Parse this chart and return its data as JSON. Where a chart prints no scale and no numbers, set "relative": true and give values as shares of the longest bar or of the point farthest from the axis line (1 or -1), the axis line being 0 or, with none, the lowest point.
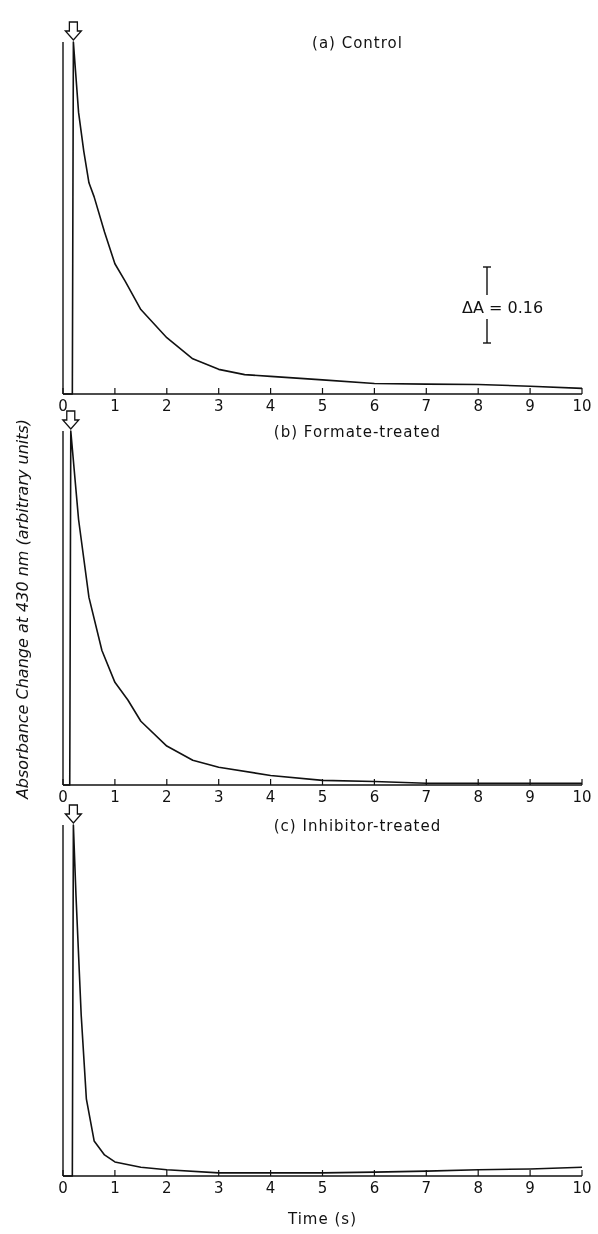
{
  "chart_data": [
    {
      "type": "line",
      "title": "(a) Control",
      "relative": true,
      "xlim": [
        0,
        10
      ],
      "xticks": [
        0,
        1,
        2,
        3,
        4,
        5,
        6,
        7,
        8,
        9,
        10
      ],
      "color": "#111111",
      "annotations": [
        "ΔA = 0.16"
      ],
      "x": [
        0,
        0.18,
        0.2,
        0.3,
        0.4,
        0.5,
        0.6,
        0.8,
        1,
        1.2,
        1.5,
        2,
        2.5,
        3,
        3.5,
        4,
        5,
        6,
        7,
        8,
        9,
        10
      ],
      "values": [
        0,
        0,
        1,
        0.8,
        0.69,
        0.6,
        0.56,
        0.46,
        0.37,
        0.32,
        0.24,
        0.16,
        0.1,
        0.07,
        0.055,
        0.05,
        0.04,
        0.03,
        0.028,
        0.027,
        0.022,
        0.016
      ]
    },
    {
      "type": "line",
      "title": "(b) Formate-treated",
      "ylabel": "Absorbance Change at 430 nm (arbitrary units)",
      "relative": true,
      "xlim": [
        0,
        10
      ],
      "xticks": [
        0,
        1,
        2,
        3,
        4,
        5,
        6,
        7,
        8,
        9,
        10
      ],
      "color": "#111111",
      "x": [
        0,
        0.13,
        0.15,
        0.3,
        0.5,
        0.75,
        1,
        1.25,
        1.5,
        2,
        2.5,
        3,
        4,
        5,
        6,
        7,
        8,
        9,
        10
      ],
      "values": [
        0,
        0,
        1,
        0.75,
        0.53,
        0.38,
        0.29,
        0.24,
        0.18,
        0.11,
        0.07,
        0.05,
        0.027,
        0.013,
        0.01,
        0.005,
        0.005,
        0.005,
        0.005
      ]
    },
    {
      "type": "line",
      "title": "(c) Inhibitor-treated",
      "xlabel": "Time (s)",
      "relative": true,
      "xlim": [
        0,
        10
      ],
      "xticks": [
        0,
        1,
        2,
        3,
        4,
        5,
        6,
        7,
        8,
        9,
        10
      ],
      "color": "#111111",
      "x": [
        0,
        0.18,
        0.2,
        0.25,
        0.35,
        0.45,
        0.6,
        0.8,
        1,
        1.5,
        2,
        3,
        4,
        5,
        6,
        7,
        8,
        9,
        10
      ],
      "values": [
        0,
        0,
        1,
        0.8,
        0.46,
        0.22,
        0.1,
        0.06,
        0.04,
        0.025,
        0.018,
        0.009,
        0.009,
        0.009,
        0.011,
        0.014,
        0.018,
        0.02,
        0.025
      ]
    }
  ]
}
